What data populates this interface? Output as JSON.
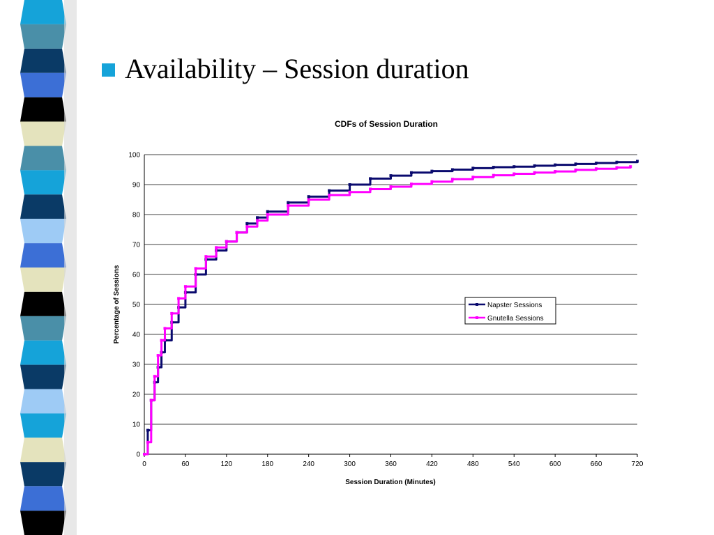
{
  "slide": {
    "heading": "Availability – Session duration",
    "bullet_color": "#15a3d9"
  },
  "sidebar": {
    "stripe_colors": [
      "#15a3d9",
      "#4a8fa8",
      "#0a3a66",
      "#3c6fd6",
      "#000000",
      "#e4e3bd",
      "#4a8fa8",
      "#15a3d9",
      "#0a3a66",
      "#9ecbf5",
      "#3c6fd6",
      "#e4e3bd",
      "#000000",
      "#4a8fa8",
      "#15a3d9",
      "#0a3a66",
      "#9ecbf5",
      "#15a3d9",
      "#e4e3bd",
      "#0a3a66",
      "#3c6fd6",
      "#000000"
    ]
  },
  "chart_data": {
    "type": "line",
    "title": "CDFs of Session Duration",
    "xlabel": "Session Duration (Minutes)",
    "ylabel": "Percentage of Sessions",
    "xlim": [
      0,
      720
    ],
    "ylim": [
      0,
      100
    ],
    "x_ticks": [
      "0",
      "60",
      "120",
      "180",
      "240",
      "300",
      "360",
      "420",
      "480",
      "540",
      "600",
      "660",
      "720"
    ],
    "y_ticks": [
      "0",
      "10",
      "20",
      "30",
      "40",
      "50",
      "60",
      "70",
      "80",
      "90",
      "100"
    ],
    "grid": "horizontal",
    "legend_position": "right",
    "series": [
      {
        "name": "Napster Sessions",
        "color": "#0a0a6e",
        "x": [
          0,
          5,
          10,
          15,
          20,
          25,
          30,
          40,
          50,
          60,
          75,
          90,
          105,
          120,
          135,
          150,
          165,
          180,
          210,
          240,
          270,
          300,
          330,
          360,
          390,
          420,
          450,
          480,
          510,
          540,
          570,
          600,
          630,
          660,
          690,
          720
        ],
        "y": [
          0,
          8,
          18,
          24,
          29,
          34,
          38,
          44,
          49,
          54,
          60,
          65,
          68,
          71,
          74,
          77,
          79,
          81,
          84,
          86,
          88,
          90,
          92,
          93,
          94,
          94.5,
          95,
          95.5,
          95.8,
          96,
          96.3,
          96.6,
          96.9,
          97.2,
          97.5,
          97.8
        ]
      },
      {
        "name": "Gnutella Sessions",
        "color": "#ff00ff",
        "x": [
          0,
          5,
          10,
          15,
          20,
          25,
          30,
          40,
          50,
          60,
          75,
          90,
          105,
          120,
          135,
          150,
          165,
          180,
          210,
          240,
          270,
          300,
          330,
          360,
          390,
          420,
          450,
          480,
          510,
          540,
          570,
          600,
          630,
          660,
          690,
          710
        ],
        "y": [
          0,
          4,
          18,
          26,
          33,
          38,
          42,
          47,
          52,
          56,
          62,
          66,
          69,
          71,
          74,
          76,
          78,
          80,
          83,
          85,
          86.5,
          87.5,
          88.5,
          89.3,
          90.2,
          91,
          91.8,
          92.5,
          93.1,
          93.6,
          94,
          94.4,
          94.9,
          95.3,
          95.7,
          96
        ]
      }
    ]
  }
}
